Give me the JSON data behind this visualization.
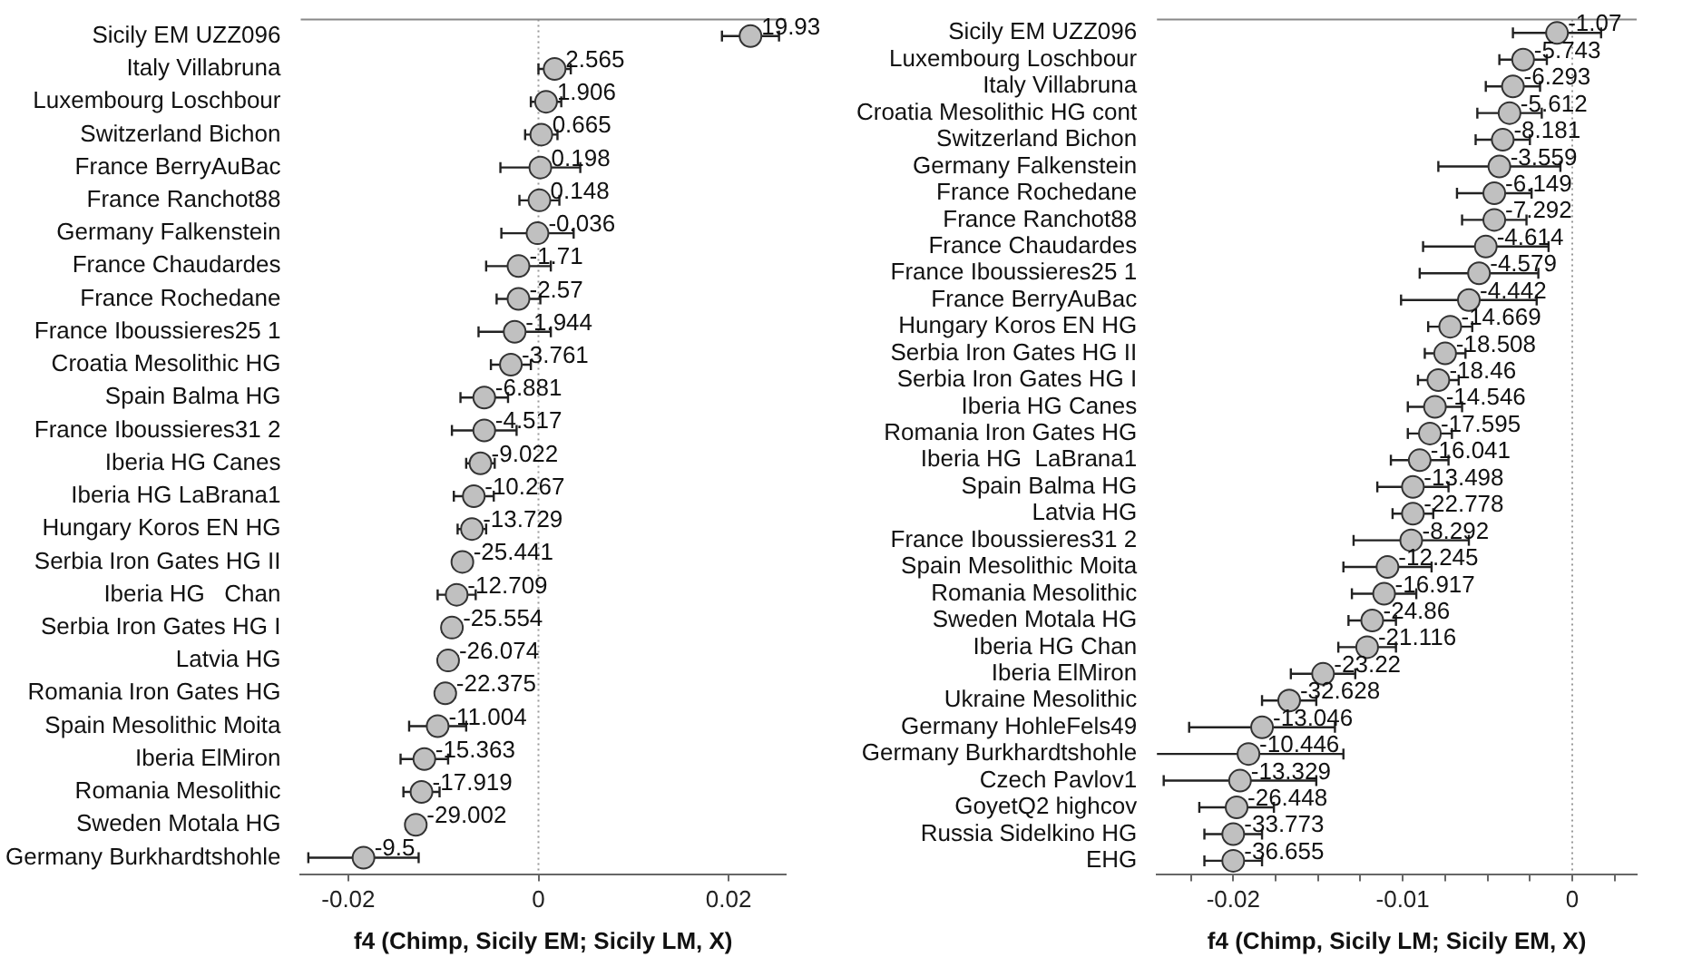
{
  "chart_data": [
    {
      "type": "scatter",
      "orientation": "horizontal",
      "marker": "circle",
      "color": "#c0c0c0",
      "grid": false,
      "categories": [
        "Sicily EM UZZ096",
        "Italy Villabruna",
        "Luxembourg Loschbour",
        "Switzerland Bichon",
        "France BerryAuBac",
        "France Ranchot88",
        "Germany Falkenstein",
        "France Chaudardes",
        "France Rochedane",
        "France Iboussieres25 1",
        "Croatia Mesolithic HG",
        "Spain Balma HG",
        "France Iboussieres31 2",
        "Iberia HG Canes",
        "Iberia HG LaBrana1",
        "Hungary Koros EN HG",
        "Serbia Iron Gates HG II",
        "Iberia HG   Chan",
        "Serbia Iron Gates HG I",
        "Latvia HG",
        "Romania Iron Gates HG",
        "Spain Mesolithic Moita",
        "Iberia ElMiron",
        "Romania Mesolithic",
        "Sweden Motala HG",
        "Germany Burkhardtshohle"
      ],
      "values": [
        0.0223,
        0.0017,
        0.0008,
        0.0003,
        0.0002,
        0.0001,
        -0.0001,
        -0.0021,
        -0.0021,
        -0.0025,
        -0.0029,
        -0.0057,
        -0.0057,
        -0.0061,
        -0.0068,
        -0.007,
        -0.008,
        -0.0086,
        -0.0091,
        -0.0095,
        -0.0098,
        -0.0106,
        -0.012,
        -0.0123,
        -0.0129,
        -0.0184
      ],
      "errors": [
        0.003,
        0.0017,
        0.0016,
        0.0017,
        0.0042,
        0.0021,
        0.0038,
        0.0034,
        0.0023,
        0.0038,
        0.0021,
        0.0025,
        0.0034,
        0.0015,
        0.0021,
        0.0015,
        0.001,
        0.002,
        0.001,
        0.001,
        0.001,
        0.003,
        0.0025,
        0.0019,
        0.001,
        0.0058
      ],
      "annotations": [
        {
          "text": "19.93",
          "x": 0.0223,
          "y": "Sicily EM UZZ096"
        },
        {
          "text": "2.565",
          "x": 0.0017,
          "y": "Italy Villabruna"
        },
        {
          "text": "1.906",
          "x": 0.0008,
          "y": "Luxembourg Loschbour"
        },
        {
          "text": "0.665",
          "x": 0.0003,
          "y": "Switzerland Bichon"
        },
        {
          "text": "0.198",
          "x": 0.0002,
          "y": "France BerryAuBac"
        },
        {
          "text": "0.148",
          "x": 0.0001,
          "y": "France Ranchot88"
        },
        {
          "text": "-0.036",
          "x": -0.0001,
          "y": "Germany Falkenstein"
        },
        {
          "text": "-1.71",
          "x": -0.0021,
          "y": "France Chaudardes"
        },
        {
          "text": "-2.57",
          "x": -0.0021,
          "y": "France Rochedane"
        },
        {
          "text": "-1.944",
          "x": -0.0025,
          "y": "France Iboussieres25 1"
        },
        {
          "text": "-3.761",
          "x": -0.0029,
          "y": "Croatia Mesolithic HG"
        },
        {
          "text": "-6.881",
          "x": -0.0057,
          "y": "Spain Balma HG"
        },
        {
          "text": "-4.517",
          "x": -0.0057,
          "y": "France Iboussieres31 2"
        },
        {
          "text": "-9.022",
          "x": -0.0061,
          "y": "Iberia HG Canes"
        },
        {
          "text": "-10.267",
          "x": -0.0068,
          "y": "Iberia HG LaBrana1"
        },
        {
          "text": "-13.729",
          "x": -0.007,
          "y": "Hungary Koros EN HG"
        },
        {
          "text": "-25.441",
          "x": -0.008,
          "y": "Serbia Iron Gates HG II"
        },
        {
          "text": "-12.709",
          "x": -0.0086,
          "y": "Iberia HG   Chan"
        },
        {
          "text": "-25.554",
          "x": -0.0091,
          "y": "Serbia Iron Gates HG I"
        },
        {
          "text": "-26.074",
          "x": -0.0095,
          "y": "Latvia HG"
        },
        {
          "text": "-22.375",
          "x": -0.0098,
          "y": "Romania Iron Gates HG"
        },
        {
          "text": "-11.004",
          "x": -0.0106,
          "y": "Spain Mesolithic Moita"
        },
        {
          "text": "-15.363",
          "x": -0.012,
          "y": "Iberia ElMiron"
        },
        {
          "text": "-17.919",
          "x": -0.0123,
          "y": "Romania Mesolithic"
        },
        {
          "text": "-29.002",
          "x": -0.0129,
          "y": "Sweden Motala HG"
        },
        {
          "text": "-9.5",
          "x": -0.0184,
          "y": "Germany Burkhardtshohle"
        }
      ],
      "xlabel": "f4 (Chimp, Sicily EM; Sicily LM, X)",
      "xlim": [
        -0.025,
        0.026
      ],
      "xticks": [
        -0.02,
        0,
        0.02
      ],
      "ref_lines": [
        {
          "axis": "x",
          "value": 0,
          "line_style": "dotted"
        }
      ]
    },
    {
      "type": "scatter",
      "orientation": "horizontal",
      "marker": "circle",
      "color": "#c0c0c0",
      "grid": false,
      "categories": [
        "Sicily EM UZZ096",
        "Luxembourg Loschbour",
        "Italy Villabruna",
        "Croatia Mesolithic HG cont",
        "Switzerland Bichon",
        "Germany Falkenstein",
        "France Rochedane",
        "France Ranchot88",
        "France Chaudardes",
        "France Iboussieres25 1",
        "France BerryAuBac",
        "Hungary Koros EN HG",
        "Serbia Iron Gates HG II",
        "Serbia Iron Gates HG I",
        "Iberia HG Canes",
        "Romania Iron Gates HG",
        "Iberia HG  LaBrana1",
        "Spain Balma HG",
        "Latvia HG",
        "France Iboussieres31 2",
        "Spain Mesolithic Moita",
        "Romania Mesolithic",
        "Sweden Motala HG",
        "Iberia HG Chan",
        "Iberia ElMiron",
        "Ukraine Mesolithic",
        "Germany HohleFels49",
        "Germany Burkhardtshohle",
        "Czech Pavlov1",
        "GoyetQ2 highcov",
        "Russia Sidelkino HG",
        "EHG"
      ],
      "values": [
        -0.0009,
        -0.0029,
        -0.0035,
        -0.0037,
        -0.0041,
        -0.0043,
        -0.0046,
        -0.0046,
        -0.0051,
        -0.0055,
        -0.0061,
        -0.0072,
        -0.0075,
        -0.0079,
        -0.0081,
        -0.0084,
        -0.009,
        -0.0094,
        -0.0094,
        -0.0095,
        -0.0109,
        -0.0111,
        -0.0118,
        -0.0121,
        -0.0147,
        -0.0167,
        -0.0183,
        -0.0191,
        -0.0196,
        -0.0198,
        -0.02,
        -0.02
      ],
      "errors": [
        0.0026,
        0.0014,
        0.0016,
        0.0019,
        0.0016,
        0.0036,
        0.0022,
        0.0019,
        0.0037,
        0.0035,
        0.004,
        0.0013,
        0.0012,
        0.0012,
        0.0016,
        0.0013,
        0.0017,
        0.0021,
        0.0012,
        0.0034,
        0.0026,
        0.0019,
        0.0014,
        0.0017,
        0.0019,
        0.0016,
        0.0043,
        0.0056,
        0.0045,
        0.0022,
        0.0017,
        0.0017
      ],
      "annotations": [
        {
          "text": "-1.07",
          "x": -0.0009,
          "y": "Sicily EM UZZ096"
        },
        {
          "text": "-5.743",
          "x": -0.0029,
          "y": "Luxembourg Loschbour"
        },
        {
          "text": "-6.293",
          "x": -0.0035,
          "y": "Italy Villabruna"
        },
        {
          "text": "-5.612",
          "x": -0.0037,
          "y": "Croatia Mesolithic HG cont"
        },
        {
          "text": "-8.181",
          "x": -0.0041,
          "y": "Switzerland Bichon"
        },
        {
          "text": "-3.559",
          "x": -0.0043,
          "y": "Germany Falkenstein"
        },
        {
          "text": "-6.149",
          "x": -0.0046,
          "y": "France Rochedane"
        },
        {
          "text": "-7.292",
          "x": -0.0046,
          "y": "France Ranchot88"
        },
        {
          "text": "-4.614",
          "x": -0.0051,
          "y": "France Chaudardes"
        },
        {
          "text": "-4.579",
          "x": -0.0055,
          "y": "France Iboussieres25 1"
        },
        {
          "text": "-4.442",
          "x": -0.0061,
          "y": "France BerryAuBac"
        },
        {
          "text": "-14.669",
          "x": -0.0072,
          "y": "Hungary Koros EN HG"
        },
        {
          "text": "-18.508",
          "x": -0.0075,
          "y": "Serbia Iron Gates HG II"
        },
        {
          "text": "-18.46",
          "x": -0.0079,
          "y": "Serbia Iron Gates HG I"
        },
        {
          "text": "-14.546",
          "x": -0.0081,
          "y": "Iberia HG Canes"
        },
        {
          "text": "-17.595",
          "x": -0.0084,
          "y": "Romania Iron Gates HG"
        },
        {
          "text": "-16.041",
          "x": -0.009,
          "y": "Iberia HG  LaBrana1"
        },
        {
          "text": "-13.498",
          "x": -0.0094,
          "y": "Spain Balma HG"
        },
        {
          "text": "-22.778",
          "x": -0.0094,
          "y": "Latvia HG"
        },
        {
          "text": "-8.292",
          "x": -0.0095,
          "y": "France Iboussieres31 2"
        },
        {
          "text": "-12.245",
          "x": -0.0109,
          "y": "Spain Mesolithic Moita"
        },
        {
          "text": "-16.917",
          "x": -0.0111,
          "y": "Romania Mesolithic"
        },
        {
          "text": "-24.86",
          "x": -0.0118,
          "y": "Sweden Motala HG"
        },
        {
          "text": "-21.116",
          "x": -0.0121,
          "y": "Iberia HG Chan"
        },
        {
          "text": "-23.22",
          "x": -0.0147,
          "y": "Iberia ElMiron"
        },
        {
          "text": "-32.628",
          "x": -0.0167,
          "y": "Ukraine Mesolithic"
        },
        {
          "text": "-13.046",
          "x": -0.0183,
          "y": "Germany HohleFels49"
        },
        {
          "text": "-10.446",
          "x": -0.0191,
          "y": "Germany Burkhardtshohle"
        },
        {
          "text": "-13.329",
          "x": -0.0196,
          "y": "Czech Pavlov1"
        },
        {
          "text": "-26.448",
          "x": -0.0198,
          "y": "GoyetQ2 highcov"
        },
        {
          "text": "-33.773",
          "x": -0.02,
          "y": "Russia Sidelkino HG"
        },
        {
          "text": "-36.655",
          "x": -0.02,
          "y": "EHG"
        }
      ],
      "xlabel": "f4 (Chimp, Sicily LM; Sicily EM, X)",
      "xlim": [
        -0.0245,
        0.0038
      ],
      "xticks": [
        {
          "value": -0.0225,
          "label": null
        },
        -0.02,
        {
          "value": -0.0175,
          "label": null
        },
        {
          "value": -0.015,
          "label": null
        },
        {
          "value": -0.0125,
          "label": null
        },
        -0.01,
        {
          "value": -0.0075,
          "label": null
        },
        {
          "value": -0.005,
          "label": null
        },
        {
          "value": -0.0025,
          "label": null
        },
        0,
        {
          "value": 0.0025,
          "label": null
        }
      ],
      "ref_lines": [
        {
          "axis": "x",
          "value": 0,
          "line_style": "dotted"
        }
      ]
    }
  ]
}
